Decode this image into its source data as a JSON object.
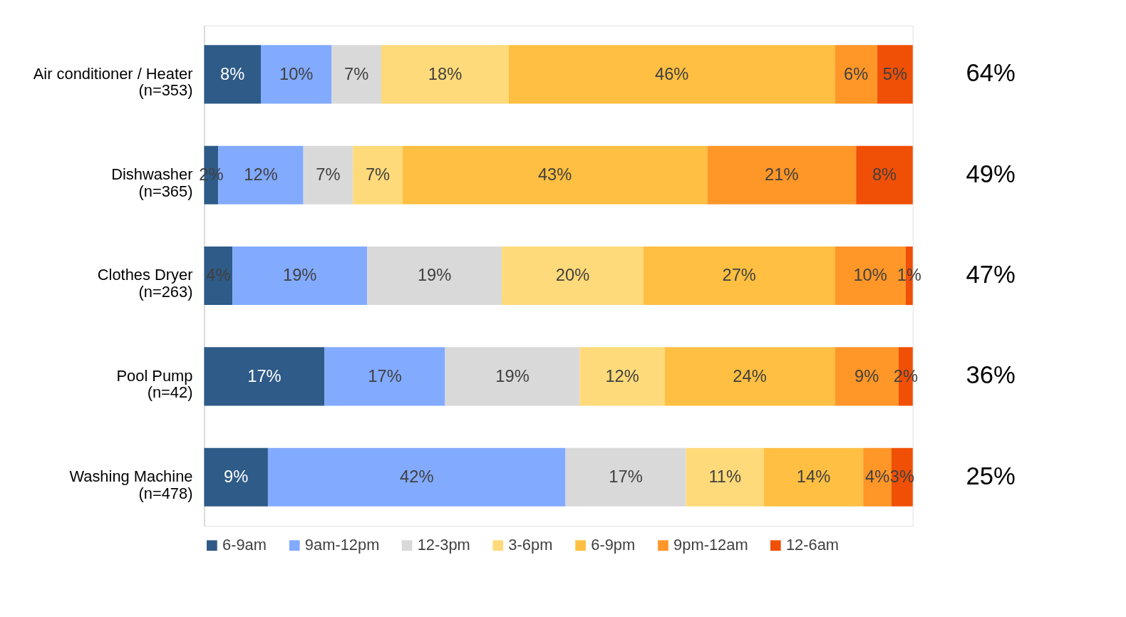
{
  "chart_data": {
    "type": "bar",
    "orientation": "horizontal",
    "stacked": true,
    "legend": "bottom",
    "grid": false,
    "categories": [
      "Air conditioner / Heater\n(n=353)",
      "Dishwasher\n(n=365)",
      "Clothes Dryer\n(n=263)",
      "Pool Pump\n(n=42)",
      "Washing Machine\n(n=478)"
    ],
    "series": [
      {
        "name": "6-9am",
        "color": "#2e5b88",
        "values": [
          8,
          2,
          4,
          17,
          9
        ],
        "value_labels": [
          "8%",
          "2%",
          "4%",
          "17%",
          "9%"
        ]
      },
      {
        "name": "9am-12pm",
        "color": "#82aaff",
        "values": [
          10,
          12,
          19,
          17,
          42
        ],
        "value_labels": [
          "10%",
          "12%",
          "19%",
          "17%",
          "42%"
        ]
      },
      {
        "name": "12-3pm",
        "color": "#d9d9d9",
        "values": [
          7,
          7,
          19,
          19,
          17
        ],
        "value_labels": [
          "7%",
          "7%",
          "19%",
          "19%",
          "17%"
        ]
      },
      {
        "name": "3-6pm",
        "color": "#ffda7a",
        "values": [
          18,
          7,
          20,
          12,
          11
        ],
        "value_labels": [
          "18%",
          "7%",
          "20%",
          "12%",
          "11%"
        ]
      },
      {
        "name": "6-9pm",
        "color": "#ffbf42",
        "values": [
          46,
          43,
          27,
          24,
          14
        ],
        "value_labels": [
          "46%",
          "43%",
          "27%",
          "24%",
          "14%"
        ]
      },
      {
        "name": "9pm-12am",
        "color": "#ff9628",
        "values": [
          6,
          21,
          10,
          9,
          4
        ],
        "value_labels": [
          "6%",
          "21%",
          "10%",
          "9%",
          "4%"
        ]
      },
      {
        "name": "12-6am",
        "color": "#f04f06",
        "values": [
          5,
          8,
          1,
          2,
          3
        ],
        "value_labels": [
          "5%",
          "8%",
          "1%",
          "2%",
          "3%"
        ]
      }
    ],
    "annotations": [
      "64%",
      "49%",
      "47%",
      "36%",
      "25%"
    ]
  }
}
